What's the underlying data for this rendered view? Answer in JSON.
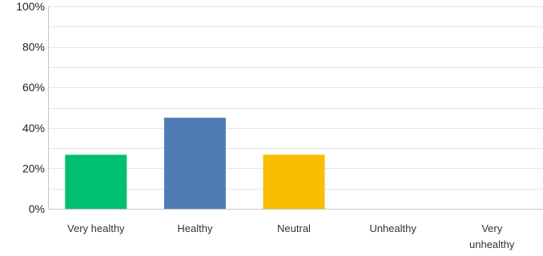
{
  "chart_data": {
    "type": "bar",
    "title": "",
    "xlabel": "",
    "ylabel": "",
    "categories": [
      [
        "Very healthy"
      ],
      [
        "Healthy"
      ],
      [
        "Neutral"
      ],
      [
        "Unhealthy"
      ],
      [
        "Very",
        "unhealthy"
      ]
    ],
    "values": [
      26.7,
      45.0,
      26.7,
      0,
      0
    ],
    "colors": [
      "#00BF6F",
      "#507CB6",
      "#F9BE00",
      "#6BC8CD",
      "#8B8B8B"
    ],
    "ylim": [
      0,
      100
    ],
    "yticks": [
      "0%",
      "20%",
      "40%",
      "60%",
      "80%",
      "100%"
    ],
    "ytick_values": [
      0,
      20,
      40,
      60,
      80,
      100
    ],
    "grid": true,
    "minor_grid": true,
    "legend": "none",
    "gridline_color": "#e5e5e5",
    "axis_color": "#c8c8c8"
  }
}
